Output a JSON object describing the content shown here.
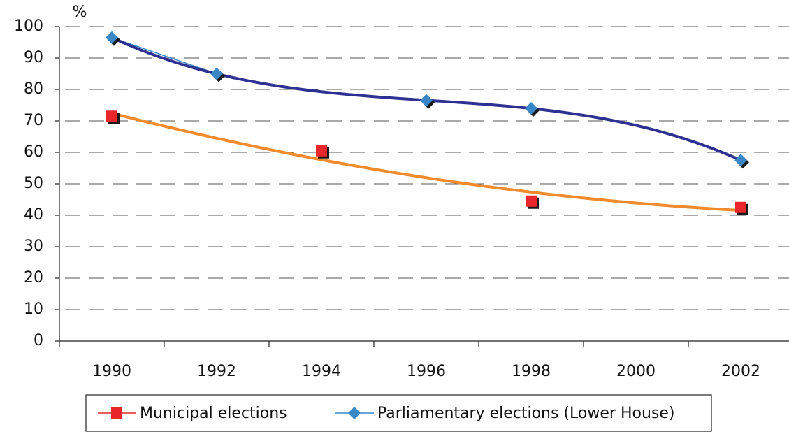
{
  "chart_data": {
    "type": "line",
    "y_label": "%",
    "categories": [
      "1990",
      "1992",
      "1994",
      "1996",
      "1998",
      "2000",
      "2002"
    ],
    "series": [
      {
        "name": "Municipal elections",
        "color": "#e8262b",
        "marker": "square",
        "trend_color": "#f08a2c",
        "trend_order": 2,
        "values": [
          71.5,
          null,
          60.5,
          null,
          44.5,
          null,
          42.5
        ]
      },
      {
        "name": "Parliamentary elections (Lower House)",
        "color": "#3a87c8",
        "marker": "diamond",
        "trend_color": "#2e3192",
        "trend_order": 3,
        "values": [
          96.5,
          85,
          null,
          76.5,
          74,
          null,
          57.5
        ]
      }
    ],
    "ylim": [
      0,
      100
    ],
    "yticks": [
      0,
      10,
      20,
      30,
      40,
      50,
      60,
      70,
      80,
      90,
      100
    ],
    "grid": true,
    "legend": "bottom"
  }
}
